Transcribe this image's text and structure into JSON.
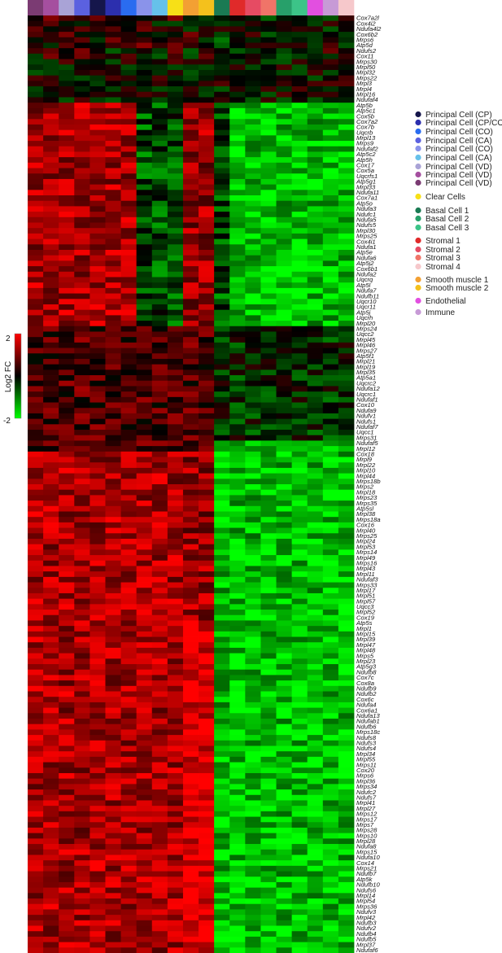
{
  "chart_data": {
    "type": "heatmap",
    "title": "",
    "colorbar": {
      "label": "Log2 FC",
      "max_label": "2",
      "min_label": "-2",
      "min": -2,
      "max": 2,
      "colors": [
        "#00ff00",
        "#000000",
        "#ff0000"
      ]
    },
    "columns": [
      {
        "color": "#7b3b73"
      },
      {
        "color": "#a54f9f"
      },
      {
        "color": "#a9a3d6"
      },
      {
        "color": "#5b61e0"
      },
      {
        "color": "#15164b"
      },
      {
        "color": "#2c2fae"
      },
      {
        "color": "#2a6cf0"
      },
      {
        "color": "#8a93ea"
      },
      {
        "color": "#66c1ea"
      },
      {
        "color": "#f7e017"
      },
      {
        "color": "#f3a033"
      },
      {
        "color": "#f4c11c"
      },
      {
        "color": "#1a7a53"
      },
      {
        "color": "#e02a2a"
      },
      {
        "color": "#e64b63"
      },
      {
        "color": "#f07468"
      },
      {
        "color": "#27a06a"
      },
      {
        "color": "#3cc488"
      },
      {
        "color": "#e24fe0"
      },
      {
        "color": "#c79ad6"
      },
      {
        "color": "#f6c8cb"
      }
    ],
    "genes": [
      "Cox7a2l",
      "Cox4i2",
      "Ndufa4l2",
      "Cox6b2",
      "Mrps6",
      "Atp5d",
      "Ndufs2",
      "Cox11",
      "Mrps30",
      "Mrpl50",
      "Mrpl32",
      "Mrps22",
      "Mrpl3",
      "Mrpl4",
      "Mrpl16",
      "Ndufaf4",
      "Atp5b",
      "Atp5c1",
      "Cox5b",
      "Cox7a2",
      "Cox7b",
      "Uqcrb",
      "Mrpl13",
      "Mrps9",
      "Ndufaf2",
      "Atp5c2",
      "Atp5h",
      "Cox17",
      "Cox5a",
      "Uqcrfs1",
      "Atp5g1",
      "Mrpl33",
      "Ndufa11",
      "Cox7a1",
      "Atp5o",
      "Ndufa3",
      "Ndufc1",
      "Ndufa5",
      "Ndufs5",
      "Mrpl30",
      "Mrps25",
      "Cox4i1",
      "Ndufa1",
      "Atp5e",
      "Ndufa6",
      "Atp5j2",
      "Cox6b1",
      "Ndufa2",
      "Uqcrq",
      "Atp5l",
      "Ndufa7",
      "Ndufb11",
      "Uqcr10",
      "Uqcr11",
      "Atp5j",
      "Uqcrh",
      "Mrpl20",
      "Mrps24",
      "Uqcc2",
      "Mrpl45",
      "Mrpl46",
      "Mrps27",
      "Atp5f1",
      "Mrpl21",
      "Mrpl19",
      "Mrpl35",
      "Atp5a1",
      "Uqcrc2",
      "Ndufa12",
      "Uqcrc1",
      "Ndufaf1",
      "Cox10",
      "Ndufa9",
      "Ndufv1",
      "Ndufs1",
      "Ndufaf7",
      "Uqcc1",
      "Mrps31",
      "Ndufaf5",
      "Mrpl12",
      "Cox18",
      "Mrpl9",
      "Mrpl22",
      "Mrpl10",
      "Mrpl44",
      "Mrps18b",
      "Mrps2",
      "Mrpl18",
      "Mrps23",
      "Mrps35",
      "Atp5sl",
      "Mrpl38",
      "Mrps18a",
      "Cox16",
      "Mrpl40",
      "Mrps25",
      "Mrpl24",
      "Mrpl53",
      "Mrps14",
      "Mrpl49",
      "Mrps16",
      "Mrpl43",
      "Mrpl11",
      "Ndufaf3",
      "Mrps33",
      "Mrpl17",
      "Mrpl51",
      "Mrpl57",
      "Uqcc3",
      "Mrpl52",
      "Cox19",
      "Atp5s",
      "Mrpl1",
      "Mrpl15",
      "Mrpl39",
      "Mrpl47",
      "Mrpl48",
      "Mrps5",
      "Mrpl23",
      "Atp5g3",
      "Ndufb8",
      "Cox7c",
      "Cox8a",
      "Ndufb9",
      "Ndufb2",
      "Cox6c",
      "Ndufa4",
      "Cox6a1",
      "Ndufa13",
      "Ndufab1",
      "Ndufb6",
      "Mrps18c",
      "Ndufs8",
      "Ndufs3",
      "Ndufs4",
      "Mrpl34",
      "Mrpl55",
      "Mrps11",
      "Cox20",
      "Mrps6",
      "Mrpl36",
      "Mrps34",
      "Ndufc2",
      "Ndufs7",
      "Mrpl41",
      "Mrpl27",
      "Mrps12",
      "Mrps17",
      "Mrps7",
      "Mrps28",
      "Mrps10",
      "Mrpl28",
      "Ndufa8",
      "Mrps15",
      "Ndufa10",
      "Cox14",
      "Mrps21",
      "Ndufb7",
      "Atp5k",
      "Ndufb10",
      "Ndufs6",
      "Mrpl14",
      "Mrpl54",
      "Mrps36",
      "Ndufv3",
      "Mrpl42",
      "Ndufb3",
      "Ndufv2",
      "Ndufb4",
      "Ndufb5",
      "Mrpl37",
      "Ndufaf6"
    ],
    "legend": [
      {
        "label": "Principal Cell (CP)",
        "color": "#15164b"
      },
      {
        "label": "Principal Cell (CP/CO)",
        "color": "#2c2fae"
      },
      {
        "label": "Principal Cell (CO)",
        "color": "#2a6cf0"
      },
      {
        "label": "Principal Cell (CA)",
        "color": "#5b61e0"
      },
      {
        "label": "Principal Cell (CO)",
        "color": "#8a93ea"
      },
      {
        "label": "Principal Cell (CA)",
        "color": "#66c1ea"
      },
      {
        "label": "Principal Cell (VD)",
        "color": "#a9a3d6"
      },
      {
        "label": "Principal Cell (VD)",
        "color": "#a54f9f"
      },
      {
        "label": "Principal Cell (VD)",
        "color": "#7b3b73"
      },
      {
        "label": "Clear Cells",
        "color": "#f7e017"
      },
      {
        "label": "Basal Cell 1",
        "color": "#1a7a53"
      },
      {
        "label": "Basal Cell 2",
        "color": "#27a06a"
      },
      {
        "label": "Basal Cell 3",
        "color": "#3cc488"
      },
      {
        "label": "Stromal 1",
        "color": "#e02a2a"
      },
      {
        "label": "Stromal 2",
        "color": "#e64b63"
      },
      {
        "label": "Stromal 3",
        "color": "#f07468"
      },
      {
        "label": "Stromal 4",
        "color": "#f6c8cb"
      },
      {
        "label": "Smooth muscle 1",
        "color": "#f3a033"
      },
      {
        "label": "Smooth muscle 2",
        "color": "#f4c11c"
      },
      {
        "label": "Endothelial",
        "color": "#e24fe0"
      },
      {
        "label": "Immune",
        "color": "#c79ad6"
      }
    ]
  }
}
